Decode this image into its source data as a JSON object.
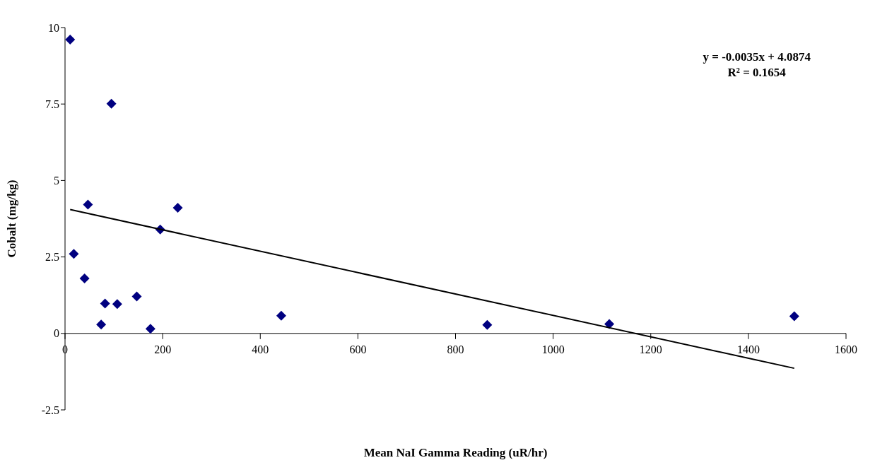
{
  "chart_data": {
    "type": "scatter",
    "xlabel": "Mean NaI Gamma Reading (uR/hr)",
    "ylabel": "Cobalt (mg/kg)",
    "annotations": [
      "y = -0.0035x + 4.0874",
      "R² = 0.1654"
    ],
    "xlim": [
      0,
      1600
    ],
    "xticks": [
      0,
      200,
      400,
      600,
      800,
      1000,
      1200,
      1400,
      1600
    ],
    "ylim": [
      -2.5,
      10
    ],
    "yticks": [
      -2.5,
      0,
      2.5,
      5,
      7.5,
      10
    ],
    "grid": false,
    "legend": false,
    "marker": "diamond",
    "series": [
      {
        "color": "#000080",
        "x": [
          10.5,
          95,
          47,
          18,
          231,
          195,
          40,
          147,
          82,
          107,
          74,
          175,
          443,
          865,
          1115,
          1494
        ],
        "values": [
          9.61,
          7.51,
          4.21,
          2.6,
          4.11,
          3.4,
          1.8,
          1.21,
          0.98,
          0.96,
          0.29,
          0.15,
          0.58,
          0.28,
          0.31,
          0.56
        ]
      },
      {
        "type": "line",
        "color": "#000000",
        "x": [
          10.5,
          1494
        ],
        "values": [
          4.05,
          -1.14
        ],
        "marker": "none",
        "line_style": "solid"
      }
    ]
  }
}
